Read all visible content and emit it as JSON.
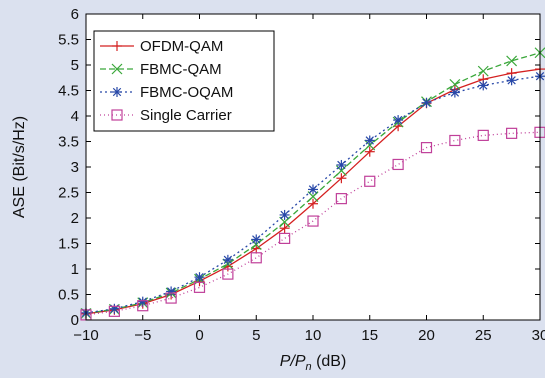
{
  "chart_data": {
    "type": "line",
    "xlabel_italic": "P/P",
    "xlabel_sub": "n",
    "xlabel_unit": " (dB)",
    "ylabel": "ASE (Bit/s/Hz)",
    "xlim": [
      -10,
      30
    ],
    "ylim": [
      0,
      6
    ],
    "xticks": [
      -10,
      -5,
      0,
      5,
      10,
      15,
      20,
      25,
      30
    ],
    "yticks": [
      0,
      0.5,
      1,
      1.5,
      2,
      2.5,
      3,
      3.5,
      4,
      4.5,
      5,
      5.5,
      6
    ],
    "xtick_labels": [
      "−10",
      "−5",
      "0",
      "5",
      "10",
      "15",
      "20",
      "25",
      "30"
    ],
    "ytick_labels": [
      "0",
      "0.5",
      "1",
      "1.5",
      "2",
      "2.5",
      "3",
      "3.5",
      "4",
      "4.5",
      "5",
      "5.5",
      "6"
    ],
    "grid": false,
    "legend_position": "top-left",
    "series": [
      {
        "name": "OFDM-QAM",
        "color": "#d42020",
        "dash": "",
        "marker": "plus",
        "x": [
          -10,
          -7.5,
          -5,
          -2.5,
          0,
          2.5,
          5,
          7.5,
          10,
          12.5,
          15,
          17.5,
          20,
          22.5,
          25,
          27.5,
          30
        ],
        "y": [
          0.12,
          0.2,
          0.32,
          0.5,
          0.76,
          1.05,
          1.4,
          1.8,
          2.28,
          2.78,
          3.3,
          3.8,
          4.25,
          4.52,
          4.72,
          4.84,
          4.92
        ]
      },
      {
        "name": "FBMC-QAM",
        "color": "#3aa73a",
        "dash": "6,3",
        "marker": "x",
        "x": [
          -10,
          -7.5,
          -5,
          -2.5,
          0,
          2.5,
          5,
          7.5,
          10,
          12.5,
          15,
          17.5,
          20,
          22.5,
          25,
          27.5,
          30
        ],
        "y": [
          0.13,
          0.21,
          0.34,
          0.53,
          0.8,
          1.1,
          1.48,
          1.92,
          2.42,
          2.93,
          3.43,
          3.88,
          4.28,
          4.62,
          4.88,
          5.08,
          5.24
        ]
      },
      {
        "name": "FBMC-OQAM",
        "color": "#2848a8",
        "dash": "2,3",
        "marker": "star",
        "x": [
          -10,
          -7.5,
          -5,
          -2.5,
          0,
          2.5,
          5,
          7.5,
          10,
          12.5,
          15,
          17.5,
          20,
          22.5,
          25,
          27.5,
          30
        ],
        "y": [
          0.14,
          0.22,
          0.36,
          0.56,
          0.84,
          1.18,
          1.58,
          2.06,
          2.56,
          3.04,
          3.52,
          3.92,
          4.26,
          4.46,
          4.6,
          4.7,
          4.78
        ]
      },
      {
        "name": "Single Carrier",
        "color": "#c0409a",
        "dash": "1,3",
        "marker": "square",
        "x": [
          -10,
          -7.5,
          -5,
          -2.5,
          0,
          2.5,
          5,
          7.5,
          10,
          12.5,
          15,
          17.5,
          20,
          22.5,
          25,
          27.5,
          30
        ],
        "y": [
          0.1,
          0.17,
          0.28,
          0.43,
          0.64,
          0.9,
          1.22,
          1.6,
          1.94,
          2.38,
          2.72,
          3.05,
          3.38,
          3.52,
          3.62,
          3.66,
          3.68
        ]
      }
    ]
  }
}
